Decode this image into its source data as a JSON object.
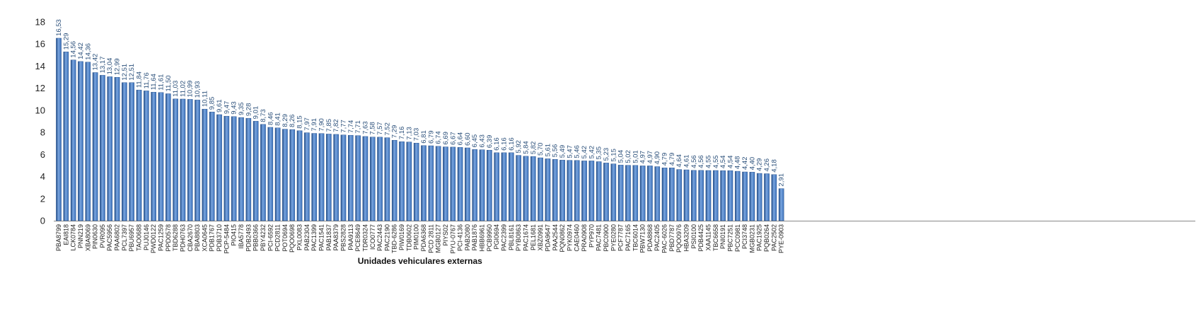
{
  "chart_data": {
    "type": "bar",
    "title": "",
    "xlabel": "Unidades vehiculares externas",
    "ylabel": "",
    "ylim": [
      0,
      18
    ],
    "yticks": [
      "0",
      "2",
      "4",
      "6",
      "8",
      "10",
      "12",
      "14",
      "16",
      "18"
    ],
    "grid": false,
    "legend": "none",
    "colors": {
      "bar": "#3a6fb8",
      "bar_light": "#7aa6e0",
      "bar_dark": "#1f4a86",
      "label": "#2a4f7a",
      "axis": "#888888"
    },
    "categories": [
      "PBA8799",
      "EAI818",
      "LCK0784",
      "PNN219",
      "XBA8069",
      "PIN0630",
      "PVR095",
      "PAC5956",
      "PAA6802",
      "PCL7397",
      "PBU6957",
      "TAO0688",
      "PUJ0146",
      "PWD0122",
      "PAC1259",
      "PPD0578",
      "TBD6288",
      "PDH0763",
      "CBA2670",
      "PBA8803",
      "XCA0645",
      "PDB1767",
      "PDB3710",
      "PCP-5484",
      "PIO415",
      "IBA5778",
      "PDB2493",
      "PBB0366",
      "PBY4232",
      "PCI-6592",
      "PCD2811",
      "POT0694",
      "PQO0698",
      "PXL0083",
      "PAB2304",
      "PAC1399",
      "PAC1541",
      "PAB1837",
      "PAA8379",
      "PBS2828",
      "PAA9113",
      "PCE8649",
      "TDR0324",
      "ICO0777",
      "PAC2443",
      "PAC2190",
      "TBD-6286",
      "PIW0169",
      "TDB0602",
      "PIM0100",
      "PDA6368",
      "PCD 2811",
      "MGB0127",
      "PIYS02",
      "PYU-0767",
      "PCI-4136",
      "PAB2080",
      "PAB1876",
      "HBB6961",
      "PCB9950",
      "PGI0694",
      "PAC2399",
      "PBL8161",
      "PYB0863",
      "PAC1674",
      "PEL1681",
      "XBZ0991",
      "PDA9647",
      "PAA2544",
      "PQN0862",
      "PYK0974",
      "CAE0460",
      "PRA0908",
      "PYP970",
      "PAC7481",
      "PBC0900",
      "PYE0280",
      "PCF7787",
      "PAC7165",
      "TBC6014",
      "PBW7130",
      "PDA8868",
      "PAC2405",
      "PAC-6026",
      "PBD7787",
      "PQO0976",
      "HBA3209",
      "PSI0100",
      "PDB4425",
      "XAA1145",
      "TBC6658",
      "PNI0191",
      "PBC7251",
      "PCC0981",
      "PCI3748",
      "MGB0231",
      "PAC1925",
      "PQB0264",
      "PAC2502",
      "PYE-0903"
    ],
    "values": [
      16.53,
      15.29,
      14.56,
      14.42,
      14.36,
      13.42,
      13.17,
      13.04,
      12.99,
      12.51,
      12.51,
      11.84,
      11.76,
      11.64,
      11.61,
      11.5,
      11.03,
      11.02,
      10.99,
      10.93,
      10.11,
      9.85,
      9.61,
      9.47,
      9.43,
      9.35,
      9.28,
      9.01,
      8.73,
      8.46,
      8.41,
      8.29,
      8.26,
      8.15,
      7.97,
      7.91,
      7.9,
      7.85,
      7.82,
      7.77,
      7.74,
      7.71,
      7.63,
      7.58,
      7.57,
      7.52,
      7.29,
      7.16,
      7.13,
      7.03,
      6.81,
      6.79,
      6.74,
      6.69,
      6.67,
      6.64,
      6.6,
      6.45,
      6.43,
      6.39,
      6.16,
      6.16,
      6.16,
      5.92,
      5.84,
      5.82,
      5.7,
      5.61,
      5.56,
      5.49,
      5.47,
      5.46,
      5.42,
      5.42,
      5.35,
      5.23,
      5.15,
      5.04,
      5.02,
      5.01,
      4.97,
      4.97,
      4.9,
      4.79,
      4.79,
      4.64,
      4.61,
      4.56,
      4.56,
      4.55,
      4.55,
      4.54,
      4.54,
      4.48,
      4.42,
      4.4,
      4.29,
      4.26,
      4.18,
      2.91
    ],
    "data_labels": [
      "16,53",
      "15,29",
      "14,56",
      "14,42",
      "14,36",
      "13,42",
      "13,17",
      "13,04",
      "12,99",
      "12,51",
      "12,51",
      "11,84",
      "11,76",
      "11,64",
      "11,61",
      "11,50",
      "11,03",
      "11,02",
      "10,99",
      "10,93",
      "10,11",
      "9,85",
      "9,61",
      "9,47",
      "9,43",
      "9,35",
      "9,28",
      "9,01",
      "8,73",
      "8,46",
      "8,41",
      "8,29",
      "8,26",
      "8,15",
      "7,97",
      "7,91",
      "7,90",
      "7,85",
      "7,82",
      "7,77",
      "7,74",
      "7,71",
      "7,63",
      "7,58",
      "7,57",
      "7,52",
      "7,29",
      "7,16",
      "7,13",
      "7,03",
      "6,81",
      "6,79",
      "6,74",
      "6,69",
      "6,67",
      "6,64",
      "6,60",
      "6,45",
      "6,43",
      "6,39",
      "6,16",
      "6,16",
      "6,16",
      "5,92",
      "5,84",
      "5,82",
      "5,70",
      "5,61",
      "5,56",
      "5,49",
      "5,47",
      "5,46",
      "5,42",
      "5,42",
      "5,35",
      "5,23",
      "5,15",
      "5,04",
      "5,02",
      "5,01",
      "4,97",
      "4,97",
      "4,90",
      "4,79",
      "4,79",
      "4,64",
      "4,61",
      "4,56",
      "4,56",
      "4,55",
      "4,55",
      "4,54",
      "4,54",
      "4,48",
      "4,42",
      "4,40",
      "4,29",
      "4,26",
      "4,18",
      "2,91"
    ]
  }
}
